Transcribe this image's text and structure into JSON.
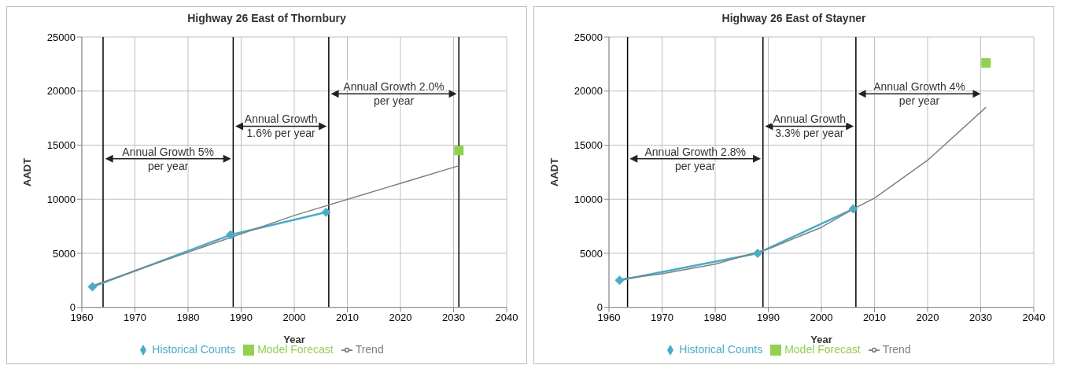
{
  "chart_data": [
    {
      "type": "line",
      "title": "Highway 26 East of Thornbury",
      "xlabel": "Year",
      "ylabel": "AADT",
      "xlim": [
        1960,
        2040
      ],
      "xticks": [
        1960,
        1970,
        1980,
        1990,
        2000,
        2010,
        2020,
        2030,
        2040
      ],
      "ylim": [
        0,
        25000
      ],
      "yticks": [
        0,
        5000,
        10000,
        15000,
        20000,
        25000
      ],
      "grid": true,
      "legend": "bottom",
      "line_style": "solid",
      "series": [
        {
          "name": "Historical Counts",
          "type": "line",
          "color": "#4bacc6",
          "marker": "diamond",
          "x": [
            1962,
            1988,
            2006
          ],
          "values": [
            1900,
            6700,
            8800
          ]
        },
        {
          "name": "Model Forecast",
          "type": "scatter",
          "color": "#92d050",
          "marker": "square",
          "x": [
            2031
          ],
          "values": [
            14500
          ]
        },
        {
          "name": "Trend",
          "type": "line",
          "color": "#808080",
          "marker": "none",
          "x": [
            1962,
            1980,
            2000,
            2031
          ],
          "values": [
            2000,
            5100,
            8500,
            13100
          ]
        }
      ],
      "ref_lines": [
        {
          "axis": "x",
          "value": 1964,
          "color": "#000000"
        },
        {
          "axis": "x",
          "value": 1988.5,
          "color": "#000000"
        },
        {
          "axis": "x",
          "value": 2006.5,
          "color": "#000000"
        },
        {
          "axis": "x",
          "value": 2031,
          "color": "#000000"
        }
      ],
      "annotations": [
        "Annual Growth 5% per year",
        "Annual Growth 1.6% per year",
        "Annual Growth 2.0% per year"
      ]
    },
    {
      "type": "line",
      "title": "Highway 26 East of Stayner",
      "xlabel": "Year",
      "ylabel": "AADT",
      "xlim": [
        1960,
        2040
      ],
      "xticks": [
        1960,
        1970,
        1980,
        1990,
        2000,
        2010,
        2020,
        2030,
        2040
      ],
      "ylim": [
        0,
        25000
      ],
      "yticks": [
        0,
        5000,
        10000,
        15000,
        20000,
        25000
      ],
      "grid": true,
      "legend": "bottom",
      "line_style": "solid",
      "series": [
        {
          "name": "Historical Counts",
          "type": "line",
          "color": "#4bacc6",
          "marker": "diamond",
          "x": [
            1962,
            1988,
            2006
          ],
          "values": [
            2500,
            5000,
            9100
          ]
        },
        {
          "name": "Model Forecast",
          "type": "scatter",
          "color": "#92d050",
          "marker": "square",
          "x": [
            2031
          ],
          "values": [
            22600
          ]
        },
        {
          "name": "Trend",
          "type": "line",
          "color": "#808080",
          "marker": "none",
          "x": [
            1962,
            1970,
            1980,
            1990,
            2000,
            2006,
            2010,
            2020,
            2031
          ],
          "values": [
            2600,
            3100,
            4000,
            5400,
            7400,
            9100,
            10100,
            13600,
            18500
          ]
        }
      ],
      "ref_lines": [
        {
          "axis": "x",
          "value": 1963.5,
          "color": "#000000"
        },
        {
          "axis": "x",
          "value": 1989,
          "color": "#000000"
        },
        {
          "axis": "x",
          "value": 2006.5,
          "color": "#000000"
        }
      ],
      "annotations": [
        "Annual Growth 2.8% per year",
        "Annual Growth 3.3% per year",
        "Annual Growth 4% per year"
      ]
    }
  ]
}
